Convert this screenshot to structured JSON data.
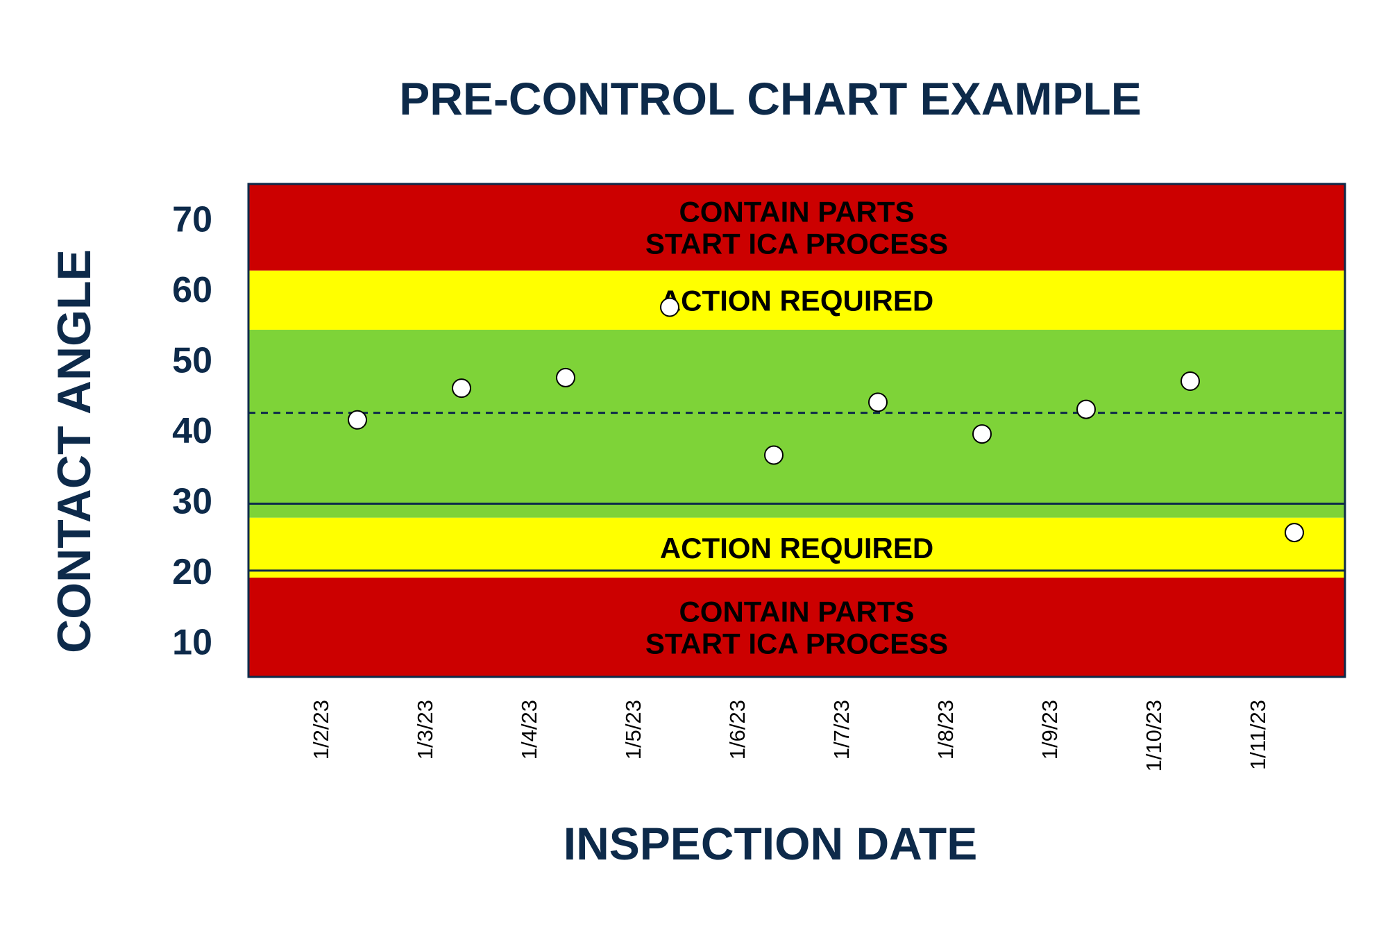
{
  "chart_data": {
    "type": "scatter",
    "title": "PRE-CONTROL CHART EXAMPLE",
    "xlabel": "INSPECTION DATE",
    "ylabel": "CONTACT ANGLE",
    "ylim": [
      5,
      75
    ],
    "yticks": [
      10,
      20,
      30,
      40,
      50,
      60,
      70
    ],
    "categories": [
      "1/2/23",
      "1/3/23",
      "1/4/23",
      "1/5/23",
      "1/6/23",
      "1/7/23",
      "1/8/23",
      "1/9/23",
      "1/10/23",
      "1/11/23"
    ],
    "points": [
      {
        "date": "1/2/23",
        "value": 41.5
      },
      {
        "date": "1/3/23",
        "value": 46
      },
      {
        "date": "1/4/23",
        "value": 47.5
      },
      {
        "date": "1/5/23",
        "value": 57.5
      },
      {
        "date": "1/6/23",
        "value": 36.5
      },
      {
        "date": "1/7/23",
        "value": 44
      },
      {
        "date": "1/8/23",
        "value": 39.5
      },
      {
        "date": "1/9/23",
        "value": 43
      },
      {
        "date": "1/10/23",
        "value": 47
      },
      {
        "date": "1/11/23",
        "value": 25.5
      }
    ],
    "center_line": 42.5,
    "zones": [
      {
        "from": 62.7,
        "to": 75,
        "color": "#cc0000",
        "label_lines": [
          "CONTAIN PARTS",
          "START ICA PROCESS"
        ]
      },
      {
        "from": 54.3,
        "to": 62.7,
        "color": "#ffff00",
        "label_lines": [
          "ACTION REQUIRED"
        ]
      },
      {
        "from": 27.6,
        "to": 54.3,
        "color": "#7ed338",
        "label_lines": []
      },
      {
        "from": 19.1,
        "to": 27.6,
        "color": "#ffff00",
        "label_lines": [
          "ACTION REQUIRED"
        ]
      },
      {
        "from": 5,
        "to": 19.1,
        "color": "#cc0000",
        "label_lines": [
          "CONTAIN PARTS",
          "START ICA PROCESS"
        ]
      }
    ],
    "limit_lines": [
      29.6,
      20.1
    ],
    "grid": false,
    "legend": "none",
    "colors": {
      "text": "#0d2a4a",
      "label": "#000000",
      "point_fill": "#ffffff",
      "point_stroke": "#000000"
    }
  }
}
